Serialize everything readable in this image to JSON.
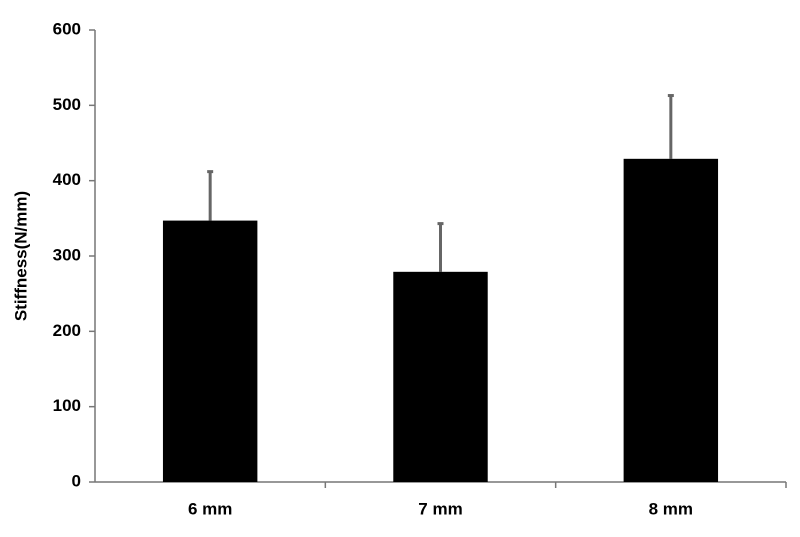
{
  "chart_data": {
    "type": "bar",
    "y_label": "Stiffness(N/mm)",
    "categories": [
      "6 mm",
      "7 mm",
      "8 mm"
    ],
    "values": [
      347,
      279,
      429
    ],
    "errors": [
      65,
      64,
      84
    ],
    "color": "#000000",
    "error_color": "#666666",
    "ylim": [
      0,
      600
    ],
    "yticks": [
      0,
      100,
      200,
      300,
      400,
      500,
      600
    ],
    "grid": false
  }
}
